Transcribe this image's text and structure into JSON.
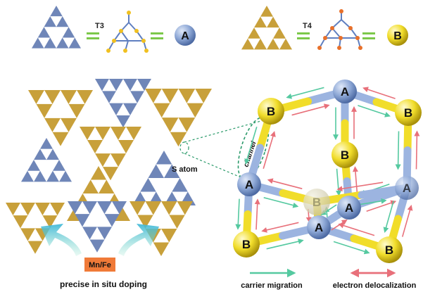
{
  "top": {
    "t3": "T3",
    "t4": "T4",
    "node_a": "A",
    "node_b": "B"
  },
  "left": {
    "s_atom": "S atom",
    "channel": "channel",
    "dopant": "Mn/Fe",
    "caption": "precise in situ doping"
  },
  "right": {
    "nodes": [
      "A",
      "A",
      "A",
      "A",
      "A",
      "B",
      "B",
      "B",
      "B",
      "B",
      "B"
    ],
    "legend_carrier": "carrier migration",
    "legend_electron": "electron delocalization"
  },
  "colors": {
    "blue_cluster": "#6f86b8",
    "gold_cluster": "#c8a03a",
    "node_a": "#8ea8d6",
    "node_b": "#f1dd2a",
    "green_arrow": "#55c9a0",
    "red_arrow": "#e8707a",
    "dopant_box": "#f07a38",
    "channel_green": "#2a9a6a"
  }
}
